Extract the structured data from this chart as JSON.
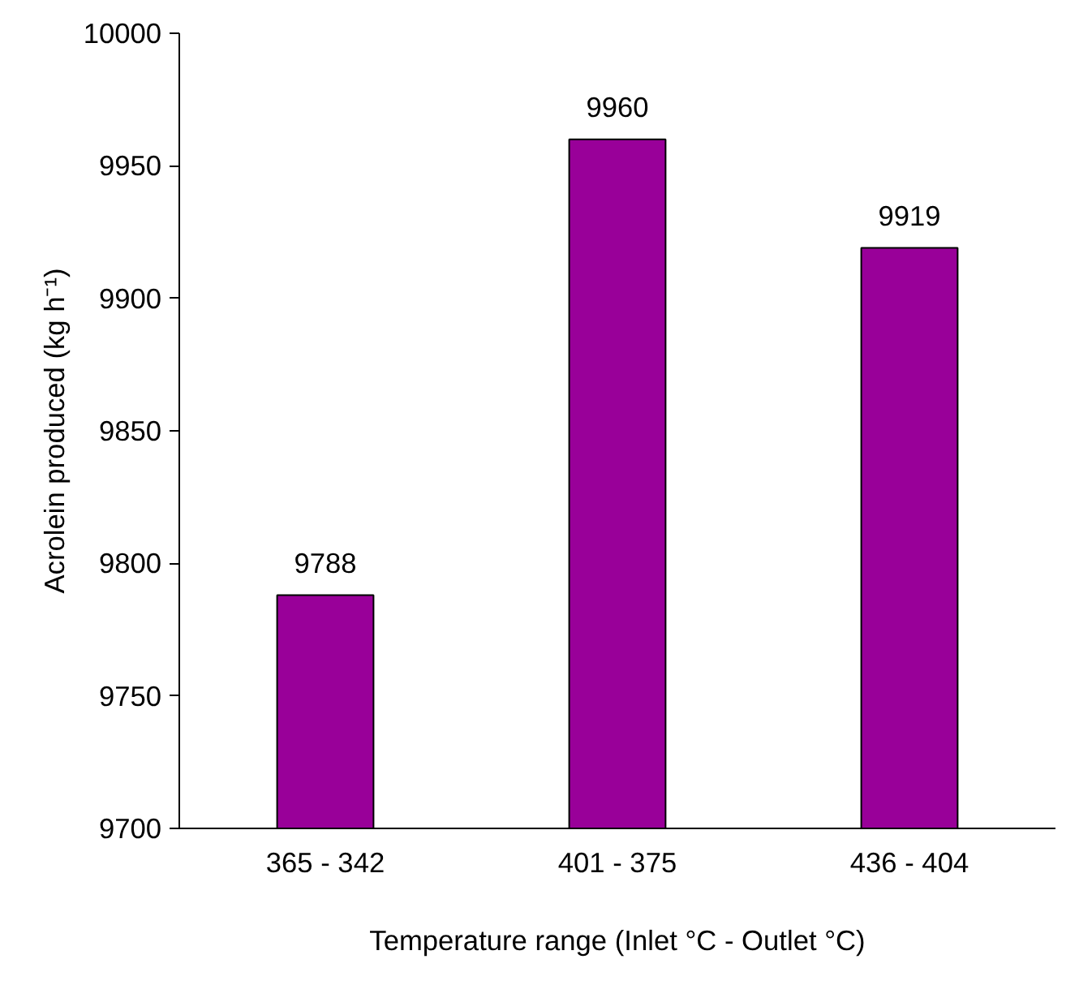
{
  "chart_data": {
    "type": "bar",
    "xlabel": "Temperature range (Inlet °C - Outlet °C)",
    "ylabel": "Acrolein produced (kg h⁻¹)",
    "categories": [
      "365 - 342",
      "401 - 375",
      "436 - 404"
    ],
    "values": [
      9788,
      9960,
      9919
    ],
    "color": "#990099",
    "ylim": [
      9700,
      10000
    ],
    "yticks": [
      9700,
      9750,
      9800,
      9850,
      9900,
      9950,
      10000
    ],
    "data_labels": true,
    "grid": false
  }
}
